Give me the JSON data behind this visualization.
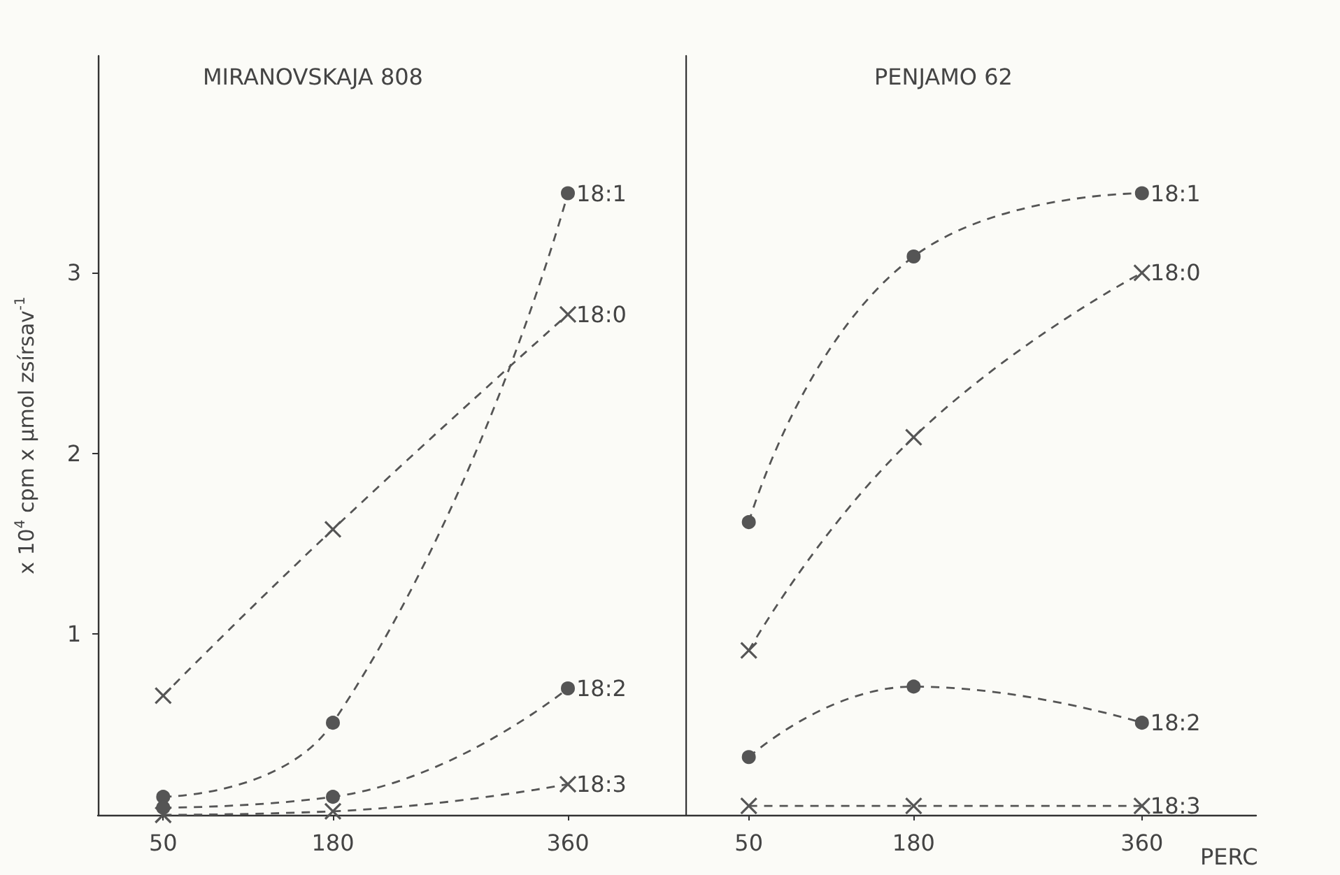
{
  "chart_data": [
    {
      "type": "line",
      "title": "MIRANOVSKAJA 808",
      "ylabel": "x 10$^{4}$ cpm x µmol zsírsav$^{-1}$",
      "xlim": [
        0,
        450
      ],
      "xticks": [
        50,
        180,
        360
      ],
      "ylim": [
        0,
        4.2
      ],
      "yticks": [
        1,
        2,
        3
      ],
      "grid": false,
      "legend": false,
      "line_style": "dashed",
      "series": [
        {
          "name": "18:1",
          "color": "#555555",
          "marker": "circle",
          "x": [
            50,
            180,
            360
          ],
          "values": [
            0.1,
            0.51,
            3.44
          ]
        },
        {
          "name": "18:0",
          "color": "#555555",
          "marker": "cross",
          "x": [
            50,
            180,
            360
          ],
          "values": [
            0.66,
            1.58,
            2.77
          ]
        },
        {
          "name": "18:2",
          "color": "#555555",
          "marker": "circle",
          "x": [
            50,
            180,
            360
          ],
          "values": [
            0.04,
            0.1,
            0.7
          ]
        },
        {
          "name": "18:3",
          "color": "#555555",
          "marker": "cross",
          "x": [
            50,
            180,
            360
          ],
          "values": [
            0.0,
            0.02,
            0.17
          ]
        }
      ]
    },
    {
      "type": "line",
      "title": "PENJAMO 62",
      "xlabel": "PERC",
      "xlim": [
        0,
        450
      ],
      "xticks": [
        50,
        180,
        360
      ],
      "ylim": [
        0,
        4.2
      ],
      "yticks": [
        1,
        2,
        3
      ],
      "tick_labels": "x",
      "grid": false,
      "legend": false,
      "line_style": "dashed",
      "series": [
        {
          "name": "18:1",
          "color": "#555555",
          "marker": "circle",
          "x": [
            50,
            180,
            360
          ],
          "values": [
            1.62,
            3.09,
            3.44
          ]
        },
        {
          "name": "18:0",
          "color": "#555555",
          "marker": "cross",
          "x": [
            50,
            180,
            360
          ],
          "values": [
            0.91,
            2.09,
            3.0
          ]
        },
        {
          "name": "18:2",
          "color": "#555555",
          "marker": "circle",
          "x": [
            50,
            180,
            360
          ],
          "values": [
            0.32,
            0.71,
            0.51
          ]
        },
        {
          "name": "18:3",
          "color": "#555555",
          "marker": "cross",
          "x": [
            50,
            180,
            360
          ],
          "values": [
            0.05,
            0.05,
            0.05
          ]
        }
      ]
    }
  ]
}
